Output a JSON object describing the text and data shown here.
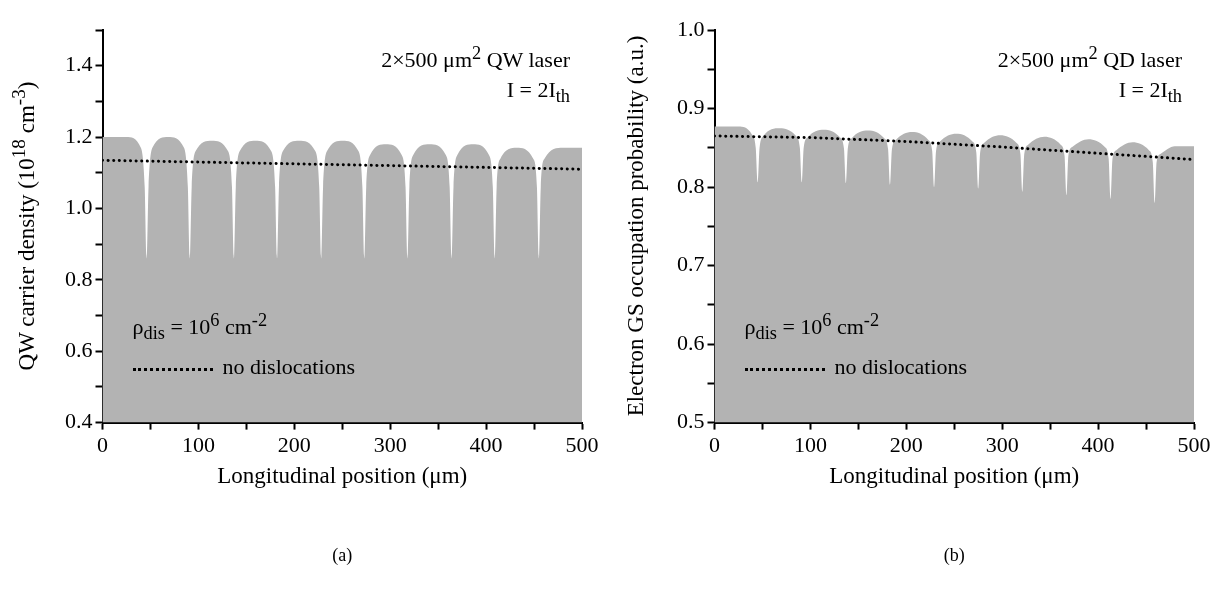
{
  "chart_data": [
    {
      "type": "area",
      "title": "(a)",
      "xlabel": "Longitudinal position (μm)",
      "ylabel": "QW carrier density (10$^{18}$ cm$^{-3}$)",
      "annotations": [
        "2×500 μm$^{2}$ QW laser",
        "I = 2I$_{th}$"
      ],
      "xlim": [
        0,
        500
      ],
      "xticks": [
        0,
        {
          "value": 50,
          "label": null
        },
        100,
        {
          "value": 150,
          "label": null
        },
        200,
        {
          "value": 250,
          "label": null
        },
        300,
        {
          "value": 350,
          "label": null
        },
        400,
        {
          "value": 450,
          "label": null
        },
        500
      ],
      "ylim": [
        0.4,
        1.5
      ],
      "yticks": [
        0.4,
        {
          "value": 0.5,
          "label": null
        },
        0.6,
        {
          "value": 0.7,
          "label": null
        },
        0.8,
        {
          "value": 0.9,
          "label": null
        },
        {
          "value": 1,
          "label": "1.0"
        },
        {
          "value": 1.1,
          "label": null
        },
        1.2,
        {
          "value": 1.3,
          "label": null
        },
        1.4,
        {
          "value": 1.5,
          "label": null
        }
      ],
      "grid": false,
      "legend": "bottom left",
      "series": [
        {
          "name": "ρ$_{dis}$ = 10$^{6}$ cm$^{-2}$",
          "type": "area",
          "color": "#b3b3b3",
          "x": [
            0,
            25,
            40,
            44,
            46,
            48,
            52,
            68.5,
            85,
            89,
            91,
            93,
            97,
            114,
            131,
            135,
            137,
            139,
            143,
            159.5,
            176,
            180,
            182,
            184,
            188,
            205,
            222,
            226,
            228,
            230,
            234,
            250.5,
            267,
            271,
            273,
            275,
            279,
            295.5,
            312,
            316,
            318,
            320,
            324,
            341,
            358,
            362,
            364,
            366,
            370,
            386.5,
            403,
            407,
            409,
            411,
            415,
            432,
            449,
            453,
            455,
            457,
            461,
            480,
            500
          ],
          "values": [
            1.2,
            1.2,
            1.17,
            1.06,
            0.86,
            1.06,
            1.17,
            1.2,
            1.17,
            1.06,
            0.86,
            1.06,
            1.16,
            1.19,
            1.16,
            1.06,
            0.86,
            1.06,
            1.16,
            1.19,
            1.16,
            1.06,
            0.86,
            1.06,
            1.16,
            1.19,
            1.16,
            1.06,
            0.86,
            1.06,
            1.16,
            1.19,
            1.16,
            1.06,
            0.86,
            1.06,
            1.15,
            1.18,
            1.15,
            1.06,
            0.86,
            1.06,
            1.15,
            1.18,
            1.15,
            1.06,
            0.86,
            1.06,
            1.15,
            1.18,
            1.15,
            1.06,
            0.86,
            1.06,
            1.14,
            1.17,
            1.14,
            1.06,
            0.86,
            1.06,
            1.14,
            1.17,
            1.17
          ]
        },
        {
          "name": "no dislocations",
          "type": "line",
          "line_style": "dotted",
          "color": "#000000",
          "x": [
            0,
            100,
            200,
            300,
            400,
            500
          ],
          "values": [
            1.135,
            1.13,
            1.125,
            1.12,
            1.115,
            1.11
          ]
        }
      ]
    },
    {
      "type": "area",
      "title": "(b)",
      "xlabel": "Longitudinal position (μm)",
      "ylabel": "Electron GS occupation probability (a.u.)",
      "annotations": [
        "2×500 μm$^{2}$ QD laser",
        "I = 2I$_{th}$"
      ],
      "xlim": [
        0,
        500
      ],
      "xticks": [
        0,
        {
          "value": 50,
          "label": null
        },
        100,
        {
          "value": 150,
          "label": null
        },
        200,
        {
          "value": 250,
          "label": null
        },
        300,
        {
          "value": 350,
          "label": null
        },
        400,
        {
          "value": 450,
          "label": null
        },
        500
      ],
      "ylim": [
        0.5,
        1.0
      ],
      "yticks": [
        0.5,
        {
          "value": 0.55,
          "label": null
        },
        0.6,
        {
          "value": 0.65,
          "label": null
        },
        0.7,
        {
          "value": 0.75,
          "label": null
        },
        0.8,
        {
          "value": 0.85,
          "label": null
        },
        0.9,
        {
          "value": 0.95,
          "label": null
        },
        {
          "value": 1,
          "label": "1.0"
        }
      ],
      "grid": false,
      "legend": "bottom left",
      "series": [
        {
          "name": "ρ$_{dis}$ = 10$^{6}$ cm$^{-2}$",
          "type": "area",
          "color": "#b3b3b3",
          "x": [
            0,
            25,
            39,
            43,
            45,
            47,
            51,
            68,
            85,
            89,
            91,
            93,
            97,
            114,
            131,
            135,
            137,
            139,
            143,
            160,
            177,
            181,
            183,
            185,
            189,
            206,
            223,
            227,
            229,
            231,
            235,
            252,
            269,
            273,
            275,
            277,
            281,
            298,
            315,
            319,
            321,
            323,
            327,
            344,
            361,
            365,
            367,
            369,
            373,
            390,
            407,
            411,
            413,
            415,
            419,
            436,
            453,
            457,
            459,
            461,
            465,
            480,
            500
          ],
          "values": [
            0.877,
            0.877,
            0.867,
            0.85,
            0.806,
            0.85,
            0.865,
            0.875,
            0.865,
            0.85,
            0.806,
            0.85,
            0.863,
            0.873,
            0.863,
            0.849,
            0.805,
            0.849,
            0.862,
            0.872,
            0.862,
            0.848,
            0.803,
            0.848,
            0.86,
            0.87,
            0.86,
            0.846,
            0.8,
            0.846,
            0.858,
            0.868,
            0.858,
            0.844,
            0.798,
            0.844,
            0.856,
            0.866,
            0.856,
            0.842,
            0.794,
            0.842,
            0.854,
            0.864,
            0.854,
            0.84,
            0.79,
            0.84,
            0.851,
            0.861,
            0.851,
            0.836,
            0.785,
            0.836,
            0.847,
            0.857,
            0.847,
            0.832,
            0.78,
            0.832,
            0.842,
            0.852,
            0.852
          ]
        },
        {
          "name": "no dislocations",
          "type": "line",
          "line_style": "dotted",
          "color": "#000000",
          "x": [
            0,
            100,
            200,
            300,
            400,
            500
          ],
          "values": [
            0.865,
            0.863,
            0.858,
            0.851,
            0.843,
            0.835
          ]
        }
      ]
    }
  ]
}
